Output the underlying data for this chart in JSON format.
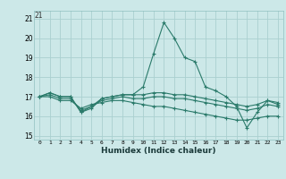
{
  "title": "",
  "xlabel": "Humidex (Indice chaleur)",
  "ylabel": "",
  "background_color": "#cce8e8",
  "grid_color": "#aad0d0",
  "line_color": "#2a7a6a",
  "xlim": [
    -0.5,
    23.5
  ],
  "ylim": [
    14.8,
    21.4
  ],
  "yticks": [
    15,
    16,
    17,
    18,
    19,
    20,
    21
  ],
  "xticks": [
    0,
    1,
    2,
    3,
    4,
    5,
    6,
    7,
    8,
    9,
    10,
    11,
    12,
    13,
    14,
    15,
    16,
    17,
    18,
    19,
    20,
    21,
    22,
    23
  ],
  "lines": [
    [
      17.0,
      17.2,
      17.0,
      17.0,
      16.2,
      16.4,
      16.9,
      17.0,
      17.1,
      17.1,
      17.5,
      19.2,
      20.8,
      20.0,
      19.0,
      18.8,
      17.5,
      17.3,
      17.0,
      16.5,
      15.4,
      16.2,
      16.8,
      16.6
    ],
    [
      17.0,
      17.2,
      17.0,
      17.0,
      16.2,
      16.5,
      16.9,
      17.0,
      17.1,
      17.1,
      17.1,
      17.2,
      17.2,
      17.1,
      17.1,
      17.0,
      16.9,
      16.8,
      16.7,
      16.6,
      16.5,
      16.6,
      16.8,
      16.7
    ],
    [
      17.0,
      17.1,
      16.9,
      16.9,
      16.3,
      16.5,
      16.8,
      16.9,
      17.0,
      16.9,
      16.9,
      17.0,
      17.0,
      16.9,
      16.9,
      16.8,
      16.7,
      16.6,
      16.5,
      16.4,
      16.3,
      16.4,
      16.6,
      16.5
    ],
    [
      17.0,
      17.0,
      16.8,
      16.8,
      16.4,
      16.6,
      16.7,
      16.8,
      16.8,
      16.7,
      16.6,
      16.5,
      16.5,
      16.4,
      16.3,
      16.2,
      16.1,
      16.0,
      15.9,
      15.8,
      15.8,
      15.9,
      16.0,
      16.0
    ]
  ],
  "top_label": "21",
  "figsize": [
    3.2,
    2.0
  ],
  "dpi": 100
}
